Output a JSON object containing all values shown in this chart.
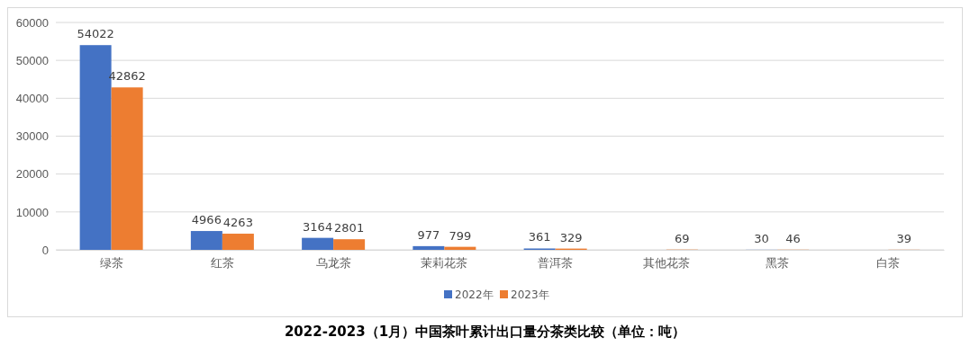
{
  "chart_data": {
    "type": "bar",
    "title": "2022-2023（1月）中国茶叶累计出口量分茶类比较（单位：吨）",
    "categories": [
      "绿茶",
      "红茶",
      "乌龙茶",
      "茉莉花茶",
      "普洱茶",
      "其他花茶",
      "黑茶",
      "白茶"
    ],
    "series": [
      {
        "name": "2022年",
        "color": "#4472c4",
        "values": [
          54022,
          4966,
          3164,
          977,
          361,
          null,
          30,
          null
        ]
      },
      {
        "name": "2023年",
        "color": "#ed7d31",
        "values": [
          42862,
          4263,
          2801,
          799,
          329,
          69,
          46,
          39
        ]
      }
    ],
    "ylim": [
      0,
      60000
    ],
    "yticks": [
      0,
      10000,
      20000,
      30000,
      40000,
      50000,
      60000
    ],
    "grid": "y",
    "legend": "bottom",
    "data_labels": true
  }
}
